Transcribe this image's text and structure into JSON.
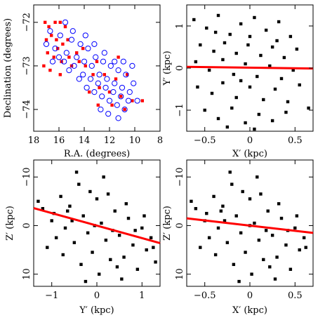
{
  "figure": {
    "colors": {
      "red": "#ff0000",
      "blue": "#0000ff",
      "black": "#000000"
    }
  },
  "chart_data": [
    {
      "type": "scatter",
      "title": "",
      "xlabel": "R.A. (degrees)",
      "ylabel": "Declination (degrees)",
      "xlim": [
        18,
        8
      ],
      "ylim": [
        -74.5,
        -71.6
      ],
      "xticks": [
        "18",
        "16",
        "14",
        "12",
        "10",
        "8"
      ],
      "yticks": [
        "−74",
        "−73",
        "−72"
      ],
      "grid": false,
      "legend": "none",
      "series": [
        {
          "marker": "red-square",
          "color": "#ff0000",
          "points": [
            [
              17.1,
              -72.0
            ],
            [
              16.8,
              -72.1
            ],
            [
              16.3,
              -72.0
            ],
            [
              15.9,
              -72.0
            ],
            [
              15.5,
              -72.1
            ],
            [
              17.0,
              -72.4
            ],
            [
              16.6,
              -72.3
            ],
            [
              16.2,
              -72.4
            ],
            [
              15.7,
              -72.5
            ],
            [
              15.3,
              -72.4
            ],
            [
              16.9,
              -72.7
            ],
            [
              16.4,
              -72.8
            ],
            [
              15.8,
              -72.9
            ],
            [
              15.2,
              -72.8
            ],
            [
              14.6,
              -72.7
            ],
            [
              17.2,
              -73.0
            ],
            [
              16.7,
              -73.1
            ],
            [
              15.9,
              -73.2
            ],
            [
              14.4,
              -72.9
            ],
            [
              13.9,
              -73.0
            ],
            [
              13.3,
              -73.2
            ],
            [
              12.8,
              -73.5
            ],
            [
              12.4,
              -73.2
            ],
            [
              12.0,
              -73.6
            ],
            [
              11.5,
              -73.3
            ],
            [
              11.1,
              -73.7
            ],
            [
              10.6,
              -73.2
            ],
            [
              10.2,
              -73.8
            ],
            [
              9.4,
              -73.8
            ],
            [
              13.6,
              -73.6
            ],
            [
              12.9,
              -73.9
            ],
            [
              11.8,
              -73.9
            ],
            [
              10.8,
              -74.0
            ],
            [
              15.0,
              -73.0
            ],
            [
              14.1,
              -72.6
            ],
            [
              16.1,
              -72.6
            ],
            [
              13.0,
              -72.9
            ],
            [
              11.3,
              -72.8
            ]
          ]
        },
        {
          "marker": "blue-open-circle",
          "color": "#0000ff",
          "points": [
            [
              16.7,
              -72.2
            ],
            [
              16.3,
              -72.6
            ],
            [
              15.9,
              -72.3
            ],
            [
              15.4,
              -72.7
            ],
            [
              15.0,
              -72.4
            ],
            [
              14.6,
              -72.8
            ],
            [
              14.3,
              -72.5
            ],
            [
              14.0,
              -72.9
            ],
            [
              13.7,
              -72.6
            ],
            [
              13.4,
              -73.0
            ],
            [
              13.1,
              -72.8
            ],
            [
              12.8,
              -73.2
            ],
            [
              12.5,
              -72.9
            ],
            [
              12.2,
              -73.3
            ],
            [
              11.9,
              -73.0
            ],
            [
              11.6,
              -73.4
            ],
            [
              11.3,
              -73.1
            ],
            [
              11.0,
              -73.5
            ],
            [
              10.7,
              -73.2
            ],
            [
              10.4,
              -73.6
            ],
            [
              10.1,
              -73.4
            ],
            [
              9.8,
              -73.8
            ],
            [
              15.6,
              -72.9
            ],
            [
              15.2,
              -73.1
            ],
            [
              14.8,
              -73.0
            ],
            [
              14.4,
              -73.3
            ],
            [
              14.1,
              -73.2
            ],
            [
              13.8,
              -73.5
            ],
            [
              13.5,
              -73.3
            ],
            [
              13.2,
              -73.6
            ],
            [
              12.9,
              -73.4
            ],
            [
              12.6,
              -73.7
            ],
            [
              12.3,
              -73.5
            ],
            [
              12.0,
              -73.8
            ],
            [
              11.7,
              -73.6
            ],
            [
              11.4,
              -73.9
            ],
            [
              11.1,
              -73.7
            ],
            [
              10.8,
              -74.0
            ],
            [
              10.5,
              -73.8
            ],
            [
              16.0,
              -72.8
            ],
            [
              16.5,
              -72.9
            ],
            [
              17.0,
              -72.5
            ],
            [
              13.9,
              -72.3
            ],
            [
              13.2,
              -72.5
            ],
            [
              12.4,
              -72.7
            ],
            [
              11.6,
              -72.9
            ],
            [
              10.9,
              -72.9
            ],
            [
              10.2,
              -73.0
            ],
            [
              12.7,
              -74.0
            ],
            [
              12.1,
              -74.1
            ],
            [
              11.3,
              -74.2
            ],
            [
              14.9,
              -72.2
            ],
            [
              15.5,
              -72.0
            ]
          ]
        }
      ]
    },
    {
      "type": "scatter",
      "title": "",
      "xlabel": "X′ (kpc)",
      "ylabel": "Y′ (kpc)",
      "xlim": [
        -0.7,
        0.7
      ],
      "ylim": [
        -1.5,
        1.5
      ],
      "xticks": [
        "−0.5",
        "0",
        "0.5"
      ],
      "yticks": [
        "−1",
        "0",
        "1"
      ],
      "grid": false,
      "legend": "none",
      "fit_line": {
        "color": "#ff0000",
        "x": [
          -0.7,
          0.7
        ],
        "y": [
          0.03,
          -0.01
        ]
      },
      "series": [
        {
          "marker": "black-square",
          "color": "#000000",
          "points": [
            [
              -0.62,
              1.15
            ],
            [
              -0.48,
              0.95
            ],
            [
              -0.35,
              1.25
            ],
            [
              -0.22,
              0.8
            ],
            [
              -0.1,
              1.05
            ],
            [
              0.05,
              1.2
            ],
            [
              0.18,
              0.9
            ],
            [
              0.32,
              1.1
            ],
            [
              0.45,
              0.75
            ],
            [
              -0.55,
              0.55
            ],
            [
              -0.4,
              0.4
            ],
            [
              -0.28,
              0.6
            ],
            [
              -0.15,
              0.35
            ],
            [
              -0.02,
              0.55
            ],
            [
              0.12,
              0.3
            ],
            [
              0.25,
              0.5
            ],
            [
              0.38,
              0.25
            ],
            [
              0.52,
              0.45
            ],
            [
              -0.6,
              0.15
            ],
            [
              -0.45,
              -0.05
            ],
            [
              -0.3,
              0.2
            ],
            [
              -0.18,
              -0.15
            ],
            [
              -0.05,
              0.1
            ],
            [
              0.08,
              -0.2
            ],
            [
              0.22,
              0.05
            ],
            [
              0.35,
              -0.25
            ],
            [
              0.48,
              -0.05
            ],
            [
              -0.58,
              -0.45
            ],
            [
              -0.42,
              -0.6
            ],
            [
              -0.3,
              -0.35
            ],
            [
              -0.15,
              -0.7
            ],
            [
              0.0,
              -0.45
            ],
            [
              0.15,
              -0.75
            ],
            [
              0.28,
              -0.5
            ],
            [
              0.42,
              -0.8
            ],
            [
              0.55,
              -0.4
            ],
            [
              -0.5,
              -1.0
            ],
            [
              -0.35,
              -1.2
            ],
            [
              -0.2,
              -0.95
            ],
            [
              -0.05,
              -1.3
            ],
            [
              0.1,
              -1.1
            ],
            [
              0.25,
              -1.25
            ],
            [
              0.4,
              -1.05
            ],
            [
              0.65,
              -0.95
            ],
            [
              -0.38,
              0.85
            ],
            [
              0.0,
              0.75
            ],
            [
              0.3,
              0.65
            ],
            [
              -0.25,
              -1.4
            ],
            [
              0.05,
              -1.45
            ],
            [
              -0.1,
              -0.3
            ]
          ]
        }
      ]
    },
    {
      "type": "scatter",
      "title": "",
      "xlabel": "Y′ (kpc)",
      "ylabel": "Z′ (kpc)",
      "xlim": [
        -1.4,
        1.4
      ],
      "ylim": [
        12.5,
        -13.5
      ],
      "xticks": [
        "−1",
        "0",
        "1"
      ],
      "yticks": [
        "−10",
        "0",
        "10"
      ],
      "grid": false,
      "legend": "none",
      "fit_line": {
        "color": "#ff0000",
        "x": [
          -1.4,
          1.4
        ],
        "y": [
          -3.6,
          3.6
        ]
      },
      "series": [
        {
          "marker": "black-square",
          "color": "#000000",
          "points": [
            [
              -1.2,
              -3.5
            ],
            [
              -1.0,
              -1.0
            ],
            [
              -0.9,
              2.5
            ],
            [
              -0.8,
              -6.0
            ],
            [
              -0.7,
              0.5
            ],
            [
              -0.6,
              -4.0
            ],
            [
              -0.5,
              3.5
            ],
            [
              -0.4,
              -8.5
            ],
            [
              -0.3,
              -2.0
            ],
            [
              -0.2,
              1.5
            ],
            [
              -0.1,
              5.5
            ],
            [
              0.0,
              -5.5
            ],
            [
              0.1,
              -0.5
            ],
            [
              0.2,
              3.0
            ],
            [
              0.3,
              7.0
            ],
            [
              0.4,
              -3.0
            ],
            [
              0.5,
              2.0
            ],
            [
              0.6,
              6.5
            ],
            [
              0.7,
              -1.5
            ],
            [
              0.8,
              4.0
            ],
            [
              0.9,
              9.0
            ],
            [
              1.0,
              0.5
            ],
            [
              1.1,
              5.0
            ],
            [
              1.2,
              2.5
            ],
            [
              1.3,
              7.5
            ],
            [
              -1.3,
              -5.0
            ],
            [
              -1.1,
              4.5
            ],
            [
              -0.95,
              -2.5
            ],
            [
              -0.75,
              6.0
            ],
            [
              -0.55,
              -1.0
            ],
            [
              -0.35,
              8.0
            ],
            [
              -0.15,
              -7.0
            ],
            [
              0.05,
              10.0
            ],
            [
              0.25,
              -6.5
            ],
            [
              0.45,
              8.5
            ],
            [
              0.65,
              -4.5
            ],
            [
              0.85,
              1.0
            ],
            [
              1.05,
              -2.0
            ],
            [
              1.25,
              4.5
            ],
            [
              -0.45,
              -11.0
            ],
            [
              -0.25,
              11.5
            ],
            [
              0.15,
              -10.0
            ],
            [
              0.55,
              11.0
            ],
            [
              -0.05,
              0.0
            ],
            [
              0.35,
              1.0
            ],
            [
              -0.65,
              -3.0
            ]
          ]
        }
      ]
    },
    {
      "type": "scatter",
      "title": "",
      "xlabel": "X′ (kpc)",
      "ylabel": "Z′ (kpc)",
      "xlim": [
        -0.7,
        0.7
      ],
      "ylim": [
        12.5,
        -13.5
      ],
      "xticks": [
        "−0.5",
        "0",
        "0.5"
      ],
      "yticks": [
        "−10",
        "0",
        "10"
      ],
      "grid": false,
      "legend": "none",
      "fit_line": {
        "color": "#ff0000",
        "x": [
          -0.7,
          0.7
        ],
        "y": [
          -1.5,
          1.5
        ]
      },
      "series": [
        {
          "marker": "black-square",
          "color": "#000000",
          "points": [
            [
              -0.6,
              -3.5
            ],
            [
              -0.5,
              -1.0
            ],
            [
              -0.45,
              2.5
            ],
            [
              -0.4,
              -6.0
            ],
            [
              -0.35,
              0.5
            ],
            [
              -0.3,
              -4.0
            ],
            [
              -0.25,
              3.5
            ],
            [
              -0.2,
              -8.5
            ],
            [
              -0.15,
              -2.0
            ],
            [
              -0.1,
              1.5
            ],
            [
              -0.05,
              5.5
            ],
            [
              0.0,
              -5.5
            ],
            [
              0.05,
              -0.5
            ],
            [
              0.1,
              3.0
            ],
            [
              0.15,
              7.0
            ],
            [
              0.2,
              -3.0
            ],
            [
              0.25,
              2.0
            ],
            [
              0.3,
              6.5
            ],
            [
              0.35,
              -1.5
            ],
            [
              0.4,
              4.0
            ],
            [
              0.45,
              9.0
            ],
            [
              0.5,
              0.5
            ],
            [
              0.55,
              5.0
            ],
            [
              0.6,
              2.5
            ],
            [
              -0.65,
              -5.0
            ],
            [
              -0.55,
              4.5
            ],
            [
              -0.48,
              -2.5
            ],
            [
              -0.38,
              6.0
            ],
            [
              -0.28,
              -1.0
            ],
            [
              -0.18,
              8.0
            ],
            [
              -0.08,
              -7.0
            ],
            [
              0.02,
              10.0
            ],
            [
              0.12,
              -6.5
            ],
            [
              0.22,
              8.5
            ],
            [
              0.32,
              -4.5
            ],
            [
              0.42,
              1.0
            ],
            [
              0.52,
              -2.0
            ],
            [
              0.62,
              4.5
            ],
            [
              -0.22,
              -11.0
            ],
            [
              -0.12,
              11.5
            ],
            [
              0.08,
              -10.0
            ],
            [
              0.28,
              11.0
            ],
            [
              0.0,
              0.0
            ],
            [
              0.18,
              1.0
            ],
            [
              -0.32,
              -3.0
            ]
          ]
        }
      ]
    }
  ]
}
